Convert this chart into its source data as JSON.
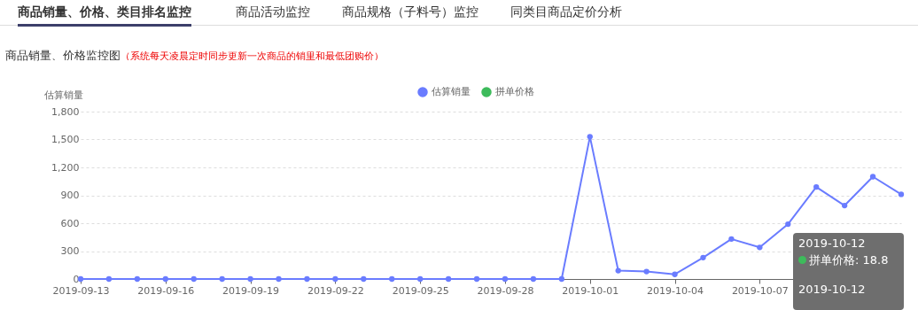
{
  "chart_data": {
    "type": "line",
    "title": "商品销量、价格监控图",
    "subtitle": "（系统每天凌晨定时同步更新一次商品的销里和最低团购价）",
    "ylabel": "估算销量",
    "annotations": [
      "商品销量、价格、类目排名监控",
      "商品活动监控",
      "商品规格（子料号）监控",
      "同类目商品定价分析",
      "2019-10-12",
      "拼单价格: 18.8",
      "2019-10-12"
    ],
    "x": [
      "2019-09-13",
      "2019-09-14",
      "2019-09-15",
      "2019-09-16",
      "2019-09-17",
      "2019-09-18",
      "2019-09-19",
      "2019-09-20",
      "2019-09-21",
      "2019-09-22",
      "2019-09-23",
      "2019-09-24",
      "2019-09-25",
      "2019-09-26",
      "2019-09-27",
      "2019-09-28",
      "2019-09-29",
      "2019-09-30",
      "2019-10-01",
      "2019-10-02",
      "2019-10-03",
      "2019-10-04",
      "2019-10-05",
      "2019-10-06",
      "2019-10-07",
      "2019-10-08",
      "2019-10-09",
      "2019-10-10",
      "2019-10-11",
      "2019-10-12"
    ],
    "series": [
      {
        "name": "估算销量",
        "color": "#6a7cff",
        "values": [
          0,
          0,
          0,
          0,
          0,
          0,
          0,
          0,
          0,
          0,
          0,
          0,
          0,
          0,
          0,
          0,
          0,
          0,
          1530,
          90,
          80,
          50,
          230,
          430,
          340,
          590,
          990,
          790,
          1100,
          910
        ]
      },
      {
        "name": "拼单价格",
        "color": "#3dbb5b",
        "values": [
          null,
          null,
          null,
          null,
          null,
          null,
          null,
          null,
          null,
          null,
          null,
          null,
          null,
          null,
          null,
          null,
          null,
          null,
          null,
          null,
          null,
          null,
          null,
          null,
          null,
          null,
          null,
          null,
          null,
          null
        ]
      }
    ],
    "xlim": [
      "2019-09-13",
      "2019-10-12"
    ],
    "xticks": [
      "2019-09-13",
      "2019-09-16",
      "2019-09-19",
      "2019-09-22",
      "2019-09-25",
      "2019-09-28",
      "2019-10-01",
      "2019-10-04",
      "2019-10-07"
    ],
    "ylim": [
      0,
      1800
    ],
    "yticks": [
      0,
      300,
      600,
      900,
      {
        "value": 1200,
        "label": "1,200"
      },
      {
        "value": 1500,
        "label": "1,500"
      },
      {
        "value": 1800,
        "label": "1,800"
      }
    ],
    "grid": "y",
    "legend": "top",
    "marker": "circle",
    "line_style": "solid"
  }
}
